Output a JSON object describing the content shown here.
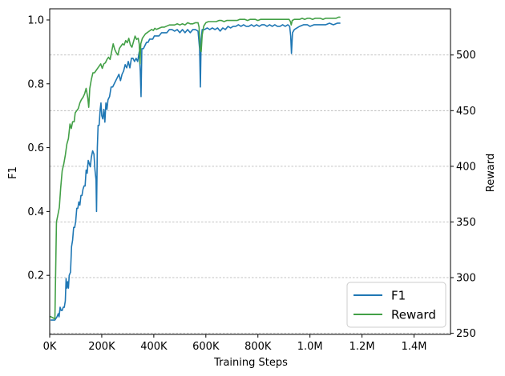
{
  "chart_data": {
    "type": "line",
    "xlabel": "Training Steps",
    "ylabel_left": "F1",
    "ylabel_right": "Reward",
    "xlim": [
      0,
      1540000
    ],
    "ylim_left": [
      0.015,
      1.035
    ],
    "ylim_right": [
      249,
      541.5
    ],
    "x_ticks": [
      0,
      200000,
      400000,
      600000,
      800000,
      1000000,
      1200000,
      1400000
    ],
    "x_tick_labels": [
      "0K",
      "200K",
      "400K",
      "600K",
      "800K",
      "1.0M",
      "1.2M",
      "1.4M"
    ],
    "y_ticks_left": [
      0.2,
      0.4,
      0.6,
      0.8,
      1.0
    ],
    "y_tick_labels_left": [
      "0.2",
      "0.4",
      "0.6",
      "0.8",
      "1.0"
    ],
    "y_ticks_right": [
      250,
      300,
      350,
      400,
      450,
      500
    ],
    "y_tick_labels_right": [
      "250",
      "300",
      "350",
      "400",
      "450",
      "500"
    ],
    "grid": "horizontal dashed at right-axis ticks",
    "legend_position": "bottom-right",
    "series": [
      {
        "name": "F1",
        "axis": "left",
        "color": "#1f77b4",
        "points": [
          [
            5000,
            0.06
          ],
          [
            20000,
            0.06
          ],
          [
            28000,
            0.07
          ],
          [
            33000,
            0.08
          ],
          [
            36000,
            0.07
          ],
          [
            40000,
            0.1
          ],
          [
            44000,
            0.09
          ],
          [
            48000,
            0.09
          ],
          [
            52000,
            0.1
          ],
          [
            56000,
            0.1
          ],
          [
            60000,
            0.12
          ],
          [
            63000,
            0.19
          ],
          [
            66000,
            0.16
          ],
          [
            69000,
            0.18
          ],
          [
            72000,
            0.16
          ],
          [
            75000,
            0.2
          ],
          [
            80000,
            0.21
          ],
          [
            84000,
            0.29
          ],
          [
            88000,
            0.31
          ],
          [
            92000,
            0.35
          ],
          [
            96000,
            0.35
          ],
          [
            100000,
            0.37
          ],
          [
            104000,
            0.41
          ],
          [
            108000,
            0.41
          ],
          [
            112000,
            0.43
          ],
          [
            116000,
            0.42
          ],
          [
            120000,
            0.45
          ],
          [
            124000,
            0.45
          ],
          [
            128000,
            0.47
          ],
          [
            132000,
            0.48
          ],
          [
            136000,
            0.48
          ],
          [
            140000,
            0.53
          ],
          [
            144000,
            0.52
          ],
          [
            148000,
            0.56
          ],
          [
            152000,
            0.55
          ],
          [
            156000,
            0.54
          ],
          [
            160000,
            0.57
          ],
          [
            165000,
            0.59
          ],
          [
            170000,
            0.58
          ],
          [
            174000,
            0.53
          ],
          [
            178000,
            0.5
          ],
          [
            180000,
            0.4
          ],
          [
            183000,
            0.6
          ],
          [
            186000,
            0.67
          ],
          [
            190000,
            0.67
          ],
          [
            194000,
            0.72
          ],
          [
            197000,
            0.74
          ],
          [
            200000,
            0.7
          ],
          [
            204000,
            0.69
          ],
          [
            208000,
            0.72
          ],
          [
            212000,
            0.68
          ],
          [
            216000,
            0.74
          ],
          [
            220000,
            0.72
          ],
          [
            224000,
            0.75
          ],
          [
            230000,
            0.76
          ],
          [
            236000,
            0.79
          ],
          [
            242000,
            0.79
          ],
          [
            248000,
            0.8
          ],
          [
            254000,
            0.81
          ],
          [
            260000,
            0.82
          ],
          [
            266000,
            0.83
          ],
          [
            272000,
            0.81
          ],
          [
            278000,
            0.83
          ],
          [
            284000,
            0.84
          ],
          [
            290000,
            0.86
          ],
          [
            296000,
            0.85
          ],
          [
            302000,
            0.87
          ],
          [
            308000,
            0.85
          ],
          [
            314000,
            0.88
          ],
          [
            320000,
            0.88
          ],
          [
            326000,
            0.87
          ],
          [
            332000,
            0.88
          ],
          [
            338000,
            0.87
          ],
          [
            344000,
            0.9
          ],
          [
            348000,
            0.84
          ],
          [
            351000,
            0.76
          ],
          [
            354000,
            0.91
          ],
          [
            360000,
            0.91
          ],
          [
            366000,
            0.92
          ],
          [
            372000,
            0.93
          ],
          [
            378000,
            0.93
          ],
          [
            384000,
            0.94
          ],
          [
            390000,
            0.94
          ],
          [
            396000,
            0.94
          ],
          [
            402000,
            0.95
          ],
          [
            410000,
            0.95
          ],
          [
            420000,
            0.95
          ],
          [
            430000,
            0.96
          ],
          [
            440000,
            0.96
          ],
          [
            450000,
            0.96
          ],
          [
            460000,
            0.97
          ],
          [
            470000,
            0.97
          ],
          [
            480000,
            0.965
          ],
          [
            490000,
            0.97
          ],
          [
            500000,
            0.96
          ],
          [
            510000,
            0.97
          ],
          [
            520000,
            0.96
          ],
          [
            530000,
            0.97
          ],
          [
            540000,
            0.96
          ],
          [
            550000,
            0.97
          ],
          [
            560000,
            0.97
          ],
          [
            570000,
            0.965
          ],
          [
            576000,
            0.91
          ],
          [
            579000,
            0.79
          ],
          [
            582000,
            0.94
          ],
          [
            586000,
            0.97
          ],
          [
            595000,
            0.97
          ],
          [
            605000,
            0.975
          ],
          [
            615000,
            0.97
          ],
          [
            625000,
            0.975
          ],
          [
            635000,
            0.97
          ],
          [
            645000,
            0.975
          ],
          [
            655000,
            0.965
          ],
          [
            665000,
            0.975
          ],
          [
            675000,
            0.97
          ],
          [
            685000,
            0.98
          ],
          [
            695000,
            0.975
          ],
          [
            705000,
            0.98
          ],
          [
            715000,
            0.98
          ],
          [
            725000,
            0.985
          ],
          [
            735000,
            0.98
          ],
          [
            745000,
            0.985
          ],
          [
            755000,
            0.98
          ],
          [
            765000,
            0.98
          ],
          [
            775000,
            0.985
          ],
          [
            785000,
            0.98
          ],
          [
            795000,
            0.985
          ],
          [
            805000,
            0.98
          ],
          [
            815000,
            0.985
          ],
          [
            825000,
            0.985
          ],
          [
            835000,
            0.98
          ],
          [
            845000,
            0.985
          ],
          [
            855000,
            0.98
          ],
          [
            865000,
            0.985
          ],
          [
            875000,
            0.98
          ],
          [
            885000,
            0.98
          ],
          [
            895000,
            0.985
          ],
          [
            905000,
            0.98
          ],
          [
            915000,
            0.985
          ],
          [
            922000,
            0.98
          ],
          [
            926000,
            0.95
          ],
          [
            929000,
            0.895
          ],
          [
            933000,
            0.96
          ],
          [
            940000,
            0.97
          ],
          [
            950000,
            0.975
          ],
          [
            960000,
            0.98
          ],
          [
            975000,
            0.985
          ],
          [
            990000,
            0.985
          ],
          [
            1000000,
            0.98
          ],
          [
            1015000,
            0.985
          ],
          [
            1030000,
            0.985
          ],
          [
            1045000,
            0.985
          ],
          [
            1060000,
            0.985
          ],
          [
            1075000,
            0.99
          ],
          [
            1090000,
            0.985
          ],
          [
            1105000,
            0.99
          ],
          [
            1115000,
            0.99
          ]
        ]
      },
      {
        "name": "Reward",
        "axis": "right",
        "color": "#43a047",
        "points": [
          [
            3000,
            265
          ],
          [
            20000,
            263
          ],
          [
            26000,
            350
          ],
          [
            32000,
            357
          ],
          [
            37000,
            363
          ],
          [
            42000,
            380
          ],
          [
            48000,
            396
          ],
          [
            54000,
            402
          ],
          [
            60000,
            410
          ],
          [
            66000,
            420
          ],
          [
            72000,
            425
          ],
          [
            78000,
            438
          ],
          [
            83000,
            434
          ],
          [
            88000,
            440
          ],
          [
            94000,
            440
          ],
          [
            98000,
            448
          ],
          [
            104000,
            450
          ],
          [
            110000,
            452
          ],
          [
            116000,
            457
          ],
          [
            122000,
            460
          ],
          [
            128000,
            462
          ],
          [
            134000,
            465
          ],
          [
            140000,
            470
          ],
          [
            146000,
            462
          ],
          [
            150000,
            453
          ],
          [
            154000,
            470
          ],
          [
            160000,
            478
          ],
          [
            166000,
            484
          ],
          [
            172000,
            484
          ],
          [
            178000,
            486
          ],
          [
            184000,
            488
          ],
          [
            190000,
            490
          ],
          [
            196000,
            492
          ],
          [
            202000,
            488
          ],
          [
            208000,
            492
          ],
          [
            214000,
            493
          ],
          [
            220000,
            496
          ],
          [
            226000,
            498
          ],
          [
            232000,
            496
          ],
          [
            238000,
            503
          ],
          [
            244000,
            510
          ],
          [
            250000,
            505
          ],
          [
            256000,
            502
          ],
          [
            262000,
            500
          ],
          [
            268000,
            506
          ],
          [
            274000,
            508
          ],
          [
            280000,
            510
          ],
          [
            286000,
            509
          ],
          [
            292000,
            513
          ],
          [
            298000,
            511
          ],
          [
            304000,
            515
          ],
          [
            310000,
            509
          ],
          [
            316000,
            507
          ],
          [
            322000,
            512
          ],
          [
            328000,
            517
          ],
          [
            334000,
            514
          ],
          [
            340000,
            515
          ],
          [
            344000,
            510
          ],
          [
            347000,
            492
          ],
          [
            350000,
            510
          ],
          [
            356000,
            515
          ],
          [
            362000,
            517
          ],
          [
            368000,
            519
          ],
          [
            374000,
            520
          ],
          [
            380000,
            521
          ],
          [
            386000,
            522
          ],
          [
            392000,
            523
          ],
          [
            398000,
            522
          ],
          [
            404000,
            524
          ],
          [
            410000,
            523
          ],
          [
            420000,
            524
          ],
          [
            430000,
            525
          ],
          [
            440000,
            525
          ],
          [
            450000,
            526
          ],
          [
            460000,
            527
          ],
          [
            470000,
            527
          ],
          [
            480000,
            527
          ],
          [
            490000,
            528
          ],
          [
            500000,
            527
          ],
          [
            510000,
            528
          ],
          [
            520000,
            527
          ],
          [
            530000,
            529
          ],
          [
            540000,
            528
          ],
          [
            550000,
            528
          ],
          [
            560000,
            529
          ],
          [
            570000,
            529
          ],
          [
            574000,
            525
          ],
          [
            578000,
            505
          ],
          [
            582000,
            503
          ],
          [
            586000,
            518
          ],
          [
            592000,
            526
          ],
          [
            600000,
            529
          ],
          [
            610000,
            530
          ],
          [
            620000,
            530
          ],
          [
            630000,
            530
          ],
          [
            640000,
            530
          ],
          [
            650000,
            531
          ],
          [
            660000,
            531
          ],
          [
            670000,
            530
          ],
          [
            680000,
            531
          ],
          [
            690000,
            531
          ],
          [
            700000,
            531
          ],
          [
            710000,
            531
          ],
          [
            720000,
            531
          ],
          [
            730000,
            532
          ],
          [
            740000,
            532
          ],
          [
            750000,
            532
          ],
          [
            760000,
            531
          ],
          [
            770000,
            532
          ],
          [
            780000,
            532
          ],
          [
            790000,
            532
          ],
          [
            800000,
            531
          ],
          [
            810000,
            532
          ],
          [
            820000,
            532
          ],
          [
            830000,
            532
          ],
          [
            840000,
            532
          ],
          [
            850000,
            532
          ],
          [
            860000,
            532
          ],
          [
            870000,
            532
          ],
          [
            880000,
            532
          ],
          [
            890000,
            532
          ],
          [
            900000,
            532
          ],
          [
            910000,
            532
          ],
          [
            920000,
            532
          ],
          [
            925000,
            530
          ],
          [
            928000,
            527
          ],
          [
            932000,
            531
          ],
          [
            940000,
            532
          ],
          [
            950000,
            532
          ],
          [
            960000,
            532
          ],
          [
            970000,
            533
          ],
          [
            980000,
            532
          ],
          [
            990000,
            533
          ],
          [
            1000000,
            533
          ],
          [
            1010000,
            532
          ],
          [
            1020000,
            533
          ],
          [
            1030000,
            533
          ],
          [
            1040000,
            533
          ],
          [
            1050000,
            532
          ],
          [
            1060000,
            533
          ],
          [
            1070000,
            533
          ],
          [
            1080000,
            533
          ],
          [
            1090000,
            533
          ],
          [
            1100000,
            533
          ],
          [
            1110000,
            534
          ],
          [
            1115000,
            534
          ]
        ]
      }
    ]
  }
}
